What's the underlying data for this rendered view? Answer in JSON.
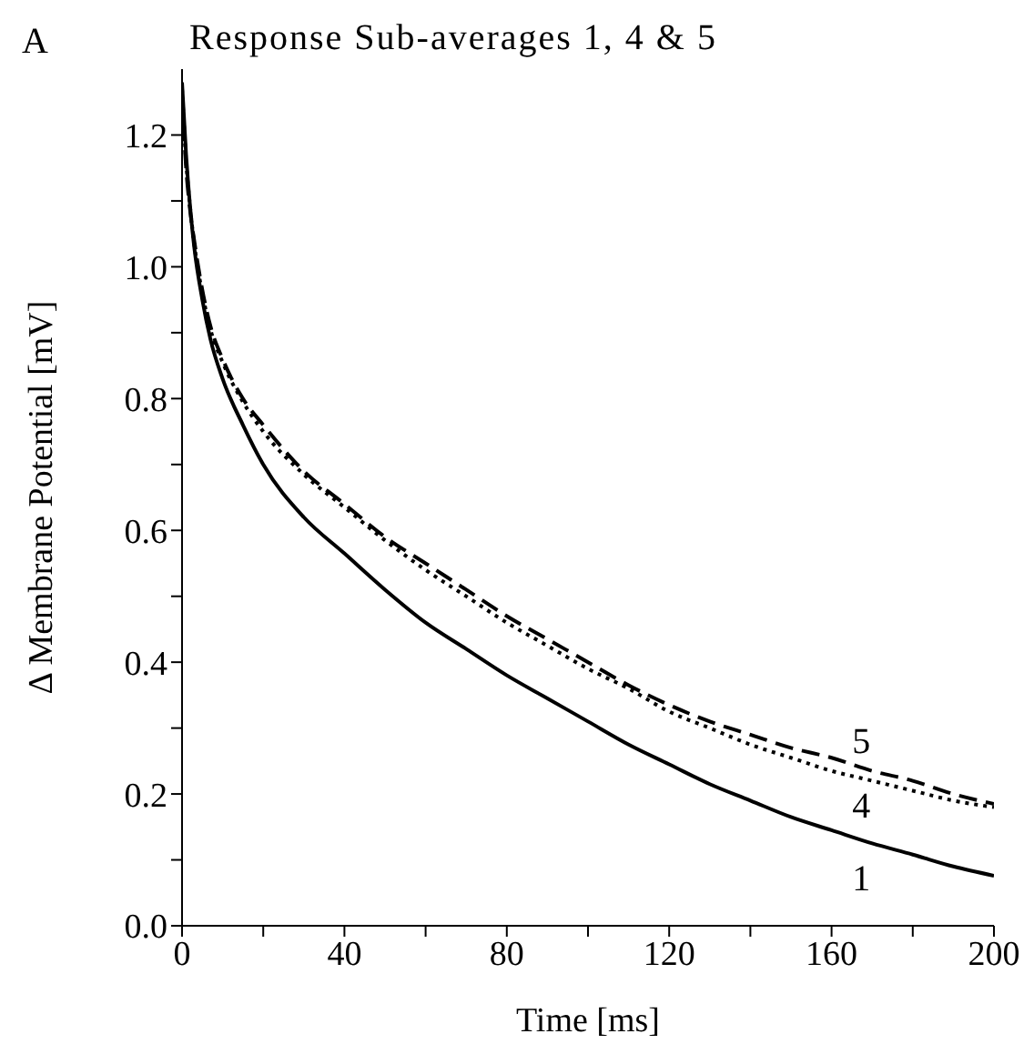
{
  "chart_data": {
    "type": "line",
    "title": "Response Sub-averages 1, 4 & 5",
    "xlabel": "Time [ms]",
    "ylabel": "Δ Membrane Potential [mV]",
    "x": [
      0,
      1,
      2,
      3,
      5,
      7,
      10,
      15,
      20,
      30,
      40,
      50,
      60,
      70,
      80,
      90,
      100,
      110,
      120,
      130,
      140,
      150,
      160,
      170,
      180,
      190,
      200
    ],
    "series": [
      {
        "name": "1",
        "color": "#000000",
        "line_style": "solid",
        "values": [
          1.28,
          1.17,
          1.09,
          1.03,
          0.95,
          0.89,
          0.83,
          0.76,
          0.7,
          0.62,
          0.565,
          0.51,
          0.46,
          0.42,
          0.38,
          0.345,
          0.31,
          0.275,
          0.245,
          0.215,
          0.19,
          0.165,
          0.145,
          0.125,
          0.108,
          0.09,
          0.076
        ]
      },
      {
        "name": "4",
        "color": "#000000",
        "line_style": "dotted",
        "values": [
          1.27,
          1.16,
          1.09,
          1.035,
          0.96,
          0.905,
          0.855,
          0.795,
          0.75,
          0.685,
          0.635,
          0.585,
          0.54,
          0.5,
          0.46,
          0.425,
          0.39,
          0.36,
          0.325,
          0.3,
          0.275,
          0.255,
          0.235,
          0.22,
          0.205,
          0.19,
          0.18
        ]
      },
      {
        "name": "5",
        "color": "#000000",
        "line_style": "dashed",
        "values": [
          1.26,
          1.15,
          1.085,
          1.04,
          0.965,
          0.91,
          0.86,
          0.8,
          0.76,
          0.69,
          0.64,
          0.59,
          0.55,
          0.51,
          0.47,
          0.435,
          0.4,
          0.365,
          0.335,
          0.31,
          0.29,
          0.27,
          0.255,
          0.235,
          0.22,
          0.2,
          0.185
        ]
      }
    ],
    "xlim": [
      0,
      200
    ],
    "xticks": [
      0,
      {
        "value": 20,
        "label": null
      },
      40,
      {
        "value": 60,
        "label": null
      },
      80,
      {
        "value": 100,
        "label": null
      },
      120,
      {
        "value": 140,
        "label": null
      },
      160,
      {
        "value": 180,
        "label": null
      },
      200
    ],
    "ylim": [
      0,
      1.3
    ],
    "yticks": [
      {
        "value": 0,
        "label": "0.0"
      },
      {
        "value": 0.1,
        "label": null
      },
      {
        "value": 0.2,
        "label": "0.2"
      },
      {
        "value": 0.3,
        "label": null
      },
      {
        "value": 0.4,
        "label": "0.4"
      },
      {
        "value": 0.5,
        "label": null
      },
      {
        "value": 0.6,
        "label": "0.6"
      },
      {
        "value": 0.7,
        "label": null
      },
      {
        "value": 0.8,
        "label": "0.8"
      },
      {
        "value": 0.9,
        "label": null
      },
      {
        "value": 1.0,
        "label": "1.0"
      },
      {
        "value": 1.1,
        "label": null
      },
      {
        "value": 1.2,
        "label": "1.2"
      }
    ],
    "annotations": [
      "A"
    ],
    "grid": false,
    "legend": false,
    "marker": "none"
  }
}
